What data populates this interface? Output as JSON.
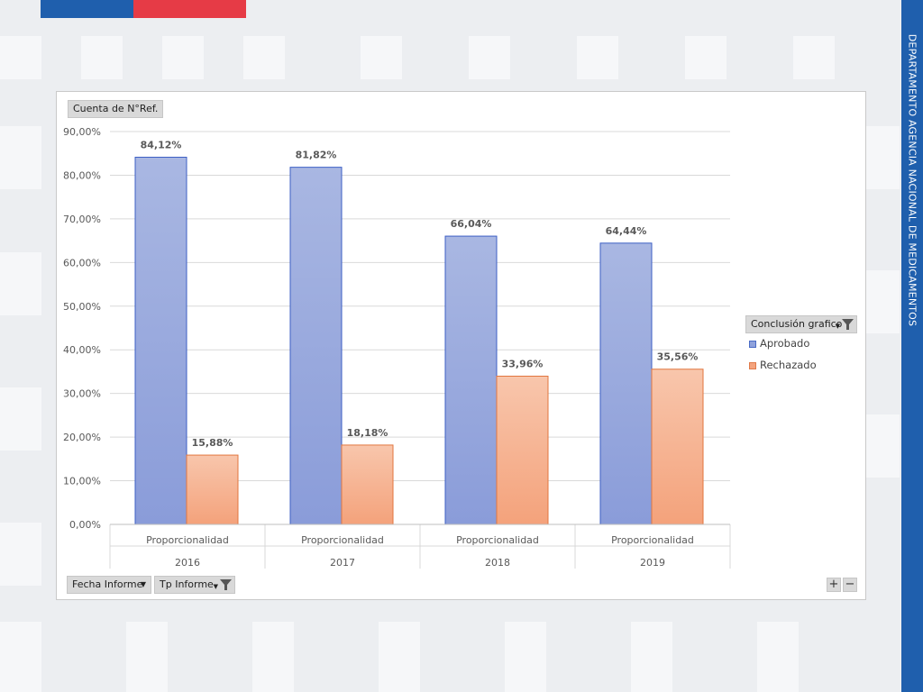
{
  "slide": {
    "side_text": "DEPARTAMENTO AGENCIA NACIONAL DE MEDICAMENTOS",
    "colors": {
      "blue": "#1f5fad",
      "red": "#e63b46",
      "panel": "#ffffff"
    }
  },
  "pivot": {
    "value_field": "Cuenta de N°Ref.",
    "filter_fecha": "Fecha Informe",
    "filter_tp": "Tp Informe",
    "legend_title": "Conclusión grafico",
    "zoom_in": "+",
    "zoom_out": "−"
  },
  "chart_data": {
    "type": "bar",
    "title": "",
    "groups": [
      {
        "category": "Proporcionalidad",
        "year": "2016"
      },
      {
        "category": "Proporcionalidad",
        "year": "2017"
      },
      {
        "category": "Proporcionalidad",
        "year": "2018"
      },
      {
        "category": "Proporcionalidad",
        "year": "2019"
      }
    ],
    "series": [
      {
        "name": "Aprobado",
        "color": "#8fa2dc",
        "values": [
          84.12,
          81.82,
          66.04,
          64.44
        ],
        "labels": [
          "84,12%",
          "81,82%",
          "66,04%",
          "64,44%"
        ]
      },
      {
        "name": "Rechazado",
        "color": "#f4a47e",
        "values": [
          15.88,
          18.18,
          33.96,
          35.56
        ],
        "labels": [
          "15,88%",
          "18,18%",
          "33,96%",
          "35,56%"
        ]
      }
    ],
    "ylim": [
      0,
      90
    ],
    "yticks": [
      "0,00%",
      "10,00%",
      "20,00%",
      "30,00%",
      "40,00%",
      "50,00%",
      "60,00%",
      "70,00%",
      "80,00%",
      "90,00%"
    ],
    "grid": true,
    "legend_position": "right"
  }
}
